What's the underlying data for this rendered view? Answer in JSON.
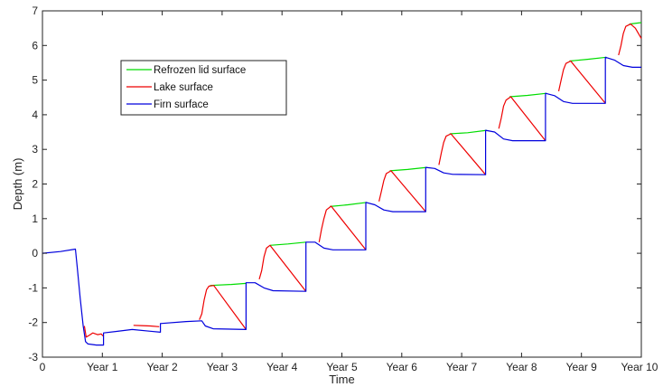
{
  "chart_data": {
    "type": "line",
    "title": "",
    "xlabel": "Time",
    "ylabel": "Depth (m)",
    "xlim": [
      0,
      10
    ],
    "ylim": [
      -3,
      7
    ],
    "grid": false,
    "legend_position": "top-left",
    "x_ticks": [
      {
        "value": 0,
        "label": "0"
      },
      {
        "value": 1,
        "label": "Year 1"
      },
      {
        "value": 2,
        "label": "Year 2"
      },
      {
        "value": 3,
        "label": "Year 3"
      },
      {
        "value": 4,
        "label": "Year 4"
      },
      {
        "value": 5,
        "label": "Year 5"
      },
      {
        "value": 6,
        "label": "Year 6"
      },
      {
        "value": 7,
        "label": "Year 7"
      },
      {
        "value": 8,
        "label": "Year 8"
      },
      {
        "value": 9,
        "label": "Year 9"
      },
      {
        "value": 10,
        "label": "Year 10"
      }
    ],
    "y_ticks": [
      {
        "value": -3,
        "label": "-3"
      },
      {
        "value": -2,
        "label": "-2"
      },
      {
        "value": -1,
        "label": "-1"
      },
      {
        "value": 0,
        "label": "0"
      },
      {
        "value": 1,
        "label": "1"
      },
      {
        "value": 2,
        "label": "2"
      },
      {
        "value": 3,
        "label": "3"
      },
      {
        "value": 4,
        "label": "4"
      },
      {
        "value": 5,
        "label": "5"
      },
      {
        "value": 6,
        "label": "6"
      },
      {
        "value": 7,
        "label": "7"
      }
    ],
    "series": [
      {
        "name": "Refrozen lid surface",
        "color": "#00dd00",
        "segments": [
          [
            [
              2.8,
              -0.93
            ],
            [
              3.15,
              -0.9
            ],
            [
              3.4,
              -0.87
            ]
          ],
          [
            [
              3.8,
              0.23
            ],
            [
              4.1,
              0.27
            ],
            [
              4.4,
              0.32
            ]
          ],
          [
            [
              4.8,
              1.35
            ],
            [
              5.1,
              1.4
            ],
            [
              5.42,
              1.47
            ]
          ],
          [
            [
              5.8,
              2.38
            ],
            [
              6.1,
              2.42
            ],
            [
              6.42,
              2.48
            ]
          ],
          [
            [
              6.8,
              3.45
            ],
            [
              7.1,
              3.48
            ],
            [
              7.42,
              3.55
            ]
          ],
          [
            [
              7.8,
              4.52
            ],
            [
              8.1,
              4.56
            ],
            [
              8.42,
              4.62
            ]
          ],
          [
            [
              8.8,
              5.55
            ],
            [
              9.1,
              5.6
            ],
            [
              9.42,
              5.66
            ]
          ],
          [
            [
              9.8,
              6.62
            ],
            [
              10.0,
              6.66
            ]
          ]
        ]
      },
      {
        "name": "Lake surface",
        "color": "#ee0000",
        "segments": [
          [
            [
              0.7,
              -2.1
            ],
            [
              0.73,
              -2.42
            ],
            [
              0.78,
              -2.37
            ],
            [
              0.84,
              -2.3
            ],
            [
              0.92,
              -2.35
            ],
            [
              0.98,
              -2.33
            ],
            [
              1.02,
              -2.4
            ]
          ],
          [
            [
              1.52,
              -2.08
            ],
            [
              1.65,
              -2.09
            ],
            [
              1.8,
              -2.1
            ],
            [
              1.95,
              -2.12
            ]
          ],
          [
            [
              2.62,
              -1.92
            ],
            [
              2.66,
              -1.75
            ],
            [
              2.7,
              -1.35
            ],
            [
              2.74,
              -1.05
            ],
            [
              2.78,
              -0.95
            ],
            [
              2.86,
              -0.93
            ],
            [
              3.4,
              -2.2
            ]
          ],
          [
            [
              3.62,
              -0.75
            ],
            [
              3.66,
              -0.5
            ],
            [
              3.7,
              -0.1
            ],
            [
              3.74,
              0.15
            ],
            [
              3.8,
              0.23
            ],
            [
              4.4,
              -1.1
            ]
          ],
          [
            [
              4.62,
              0.32
            ],
            [
              4.66,
              0.7
            ],
            [
              4.7,
              1.0
            ],
            [
              4.74,
              1.25
            ],
            [
              4.82,
              1.36
            ],
            [
              5.4,
              0.1
            ]
          ],
          [
            [
              5.62,
              1.5
            ],
            [
              5.66,
              1.8
            ],
            [
              5.7,
              2.1
            ],
            [
              5.74,
              2.3
            ],
            [
              5.82,
              2.38
            ],
            [
              6.4,
              1.2
            ]
          ],
          [
            [
              6.62,
              2.55
            ],
            [
              6.66,
              2.9
            ],
            [
              6.7,
              3.2
            ],
            [
              6.74,
              3.38
            ],
            [
              6.82,
              3.45
            ],
            [
              7.4,
              2.27
            ]
          ],
          [
            [
              7.62,
              3.6
            ],
            [
              7.66,
              3.9
            ],
            [
              7.7,
              4.25
            ],
            [
              7.74,
              4.42
            ],
            [
              7.82,
              4.52
            ],
            [
              8.4,
              3.25
            ]
          ],
          [
            [
              8.62,
              4.68
            ],
            [
              8.66,
              5.0
            ],
            [
              8.7,
              5.3
            ],
            [
              8.74,
              5.48
            ],
            [
              8.82,
              5.55
            ],
            [
              9.4,
              4.33
            ]
          ],
          [
            [
              9.62,
              5.72
            ],
            [
              9.66,
              6.0
            ],
            [
              9.7,
              6.35
            ],
            [
              9.74,
              6.55
            ],
            [
              9.82,
              6.62
            ],
            [
              9.9,
              6.5
            ],
            [
              10.0,
              6.2
            ]
          ]
        ]
      },
      {
        "name": "Firn surface",
        "color": "#0000dd",
        "segments": [
          [
            [
              0.0,
              0.0
            ],
            [
              0.3,
              0.05
            ],
            [
              0.55,
              0.12
            ],
            [
              0.58,
              -0.4
            ],
            [
              0.63,
              -1.3
            ],
            [
              0.68,
              -2.1
            ],
            [
              0.72,
              -2.55
            ],
            [
              0.76,
              -2.62
            ],
            [
              0.9,
              -2.65
            ],
            [
              1.02,
              -2.65
            ],
            [
              1.02,
              -2.3
            ],
            [
              1.5,
              -2.2
            ],
            [
              1.8,
              -2.25
            ],
            [
              1.97,
              -2.28
            ],
            [
              1.97,
              -2.03
            ],
            [
              2.4,
              -1.97
            ],
            [
              2.66,
              -1.95
            ],
            [
              2.72,
              -2.1
            ],
            [
              2.85,
              -2.18
            ],
            [
              3.4,
              -2.2
            ],
            [
              3.4,
              -0.85
            ],
            [
              3.55,
              -0.85
            ],
            [
              3.7,
              -1.0
            ],
            [
              3.85,
              -1.08
            ],
            [
              4.4,
              -1.1
            ],
            [
              4.4,
              0.32
            ],
            [
              4.55,
              0.32
            ],
            [
              4.7,
              0.15
            ],
            [
              4.85,
              0.1
            ],
            [
              5.4,
              0.1
            ],
            [
              5.4,
              1.47
            ],
            [
              5.55,
              1.4
            ],
            [
              5.7,
              1.25
            ],
            [
              5.85,
              1.2
            ],
            [
              6.4,
              1.2
            ],
            [
              6.4,
              2.48
            ],
            [
              6.55,
              2.45
            ],
            [
              6.7,
              2.32
            ],
            [
              6.85,
              2.28
            ],
            [
              7.4,
              2.27
            ],
            [
              7.4,
              3.55
            ],
            [
              7.55,
              3.5
            ],
            [
              7.7,
              3.3
            ],
            [
              7.85,
              3.25
            ],
            [
              8.4,
              3.25
            ],
            [
              8.4,
              4.62
            ],
            [
              8.55,
              4.55
            ],
            [
              8.7,
              4.38
            ],
            [
              8.85,
              4.33
            ],
            [
              9.4,
              4.33
            ],
            [
              9.4,
              5.66
            ],
            [
              9.55,
              5.58
            ],
            [
              9.7,
              5.42
            ],
            [
              9.85,
              5.37
            ],
            [
              10.0,
              5.37
            ]
          ]
        ]
      }
    ]
  }
}
